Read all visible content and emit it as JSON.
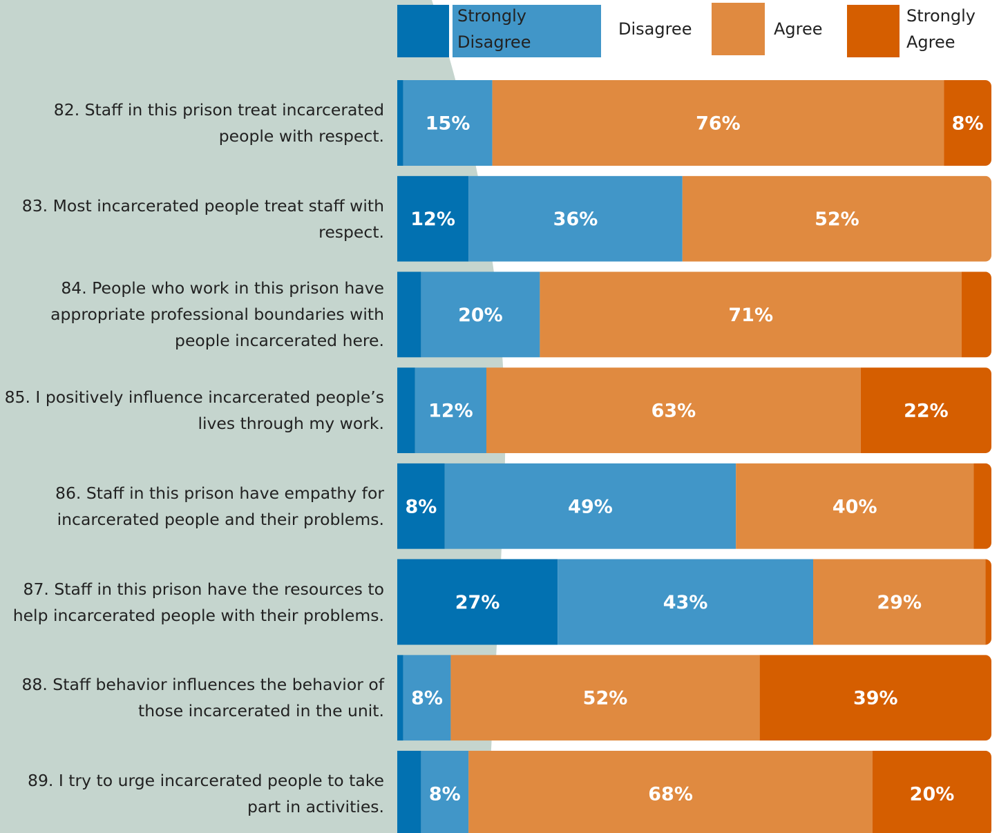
{
  "chart_data": {
    "type": "stacked-bar-horizontal",
    "categories": [
      "82. Staff in this prison treat incarcerated people with respect.",
      "83. Most incarcerated people treat staff with respect.",
      "84. People who work in this prison have appropriate professional boundaries with people incarcerated here.",
      "85. I positively influence incarcerated people’s lives through my work.",
      "86. Staff in this prison have empathy for incarcerated people and their problems.",
      "87. Staff in this prison have the resources to help incarcerated people with their problems.",
      "88. Staff behavior influences the behavior of those incarcerated in the unit.",
      "89. I try to urge incarcerated people to take part in activities."
    ],
    "series": [
      {
        "name": "Strongly Disagree",
        "color": "#0271b1",
        "values": [
          1,
          12,
          4,
          3,
          8,
          27,
          1,
          4
        ],
        "value_labels": [
          null,
          "12%",
          null,
          null,
          "8%",
          "27%",
          null,
          null
        ]
      },
      {
        "name": "Disagree",
        "color": "#4196c8",
        "values": [
          15,
          36,
          20,
          12,
          49,
          43,
          8,
          8
        ],
        "value_labels": [
          "15%",
          "36%",
          "20%",
          "12%",
          "49%",
          "43%",
          "8%",
          "8%"
        ]
      },
      {
        "name": "Agree",
        "color": "#e08a40",
        "values": [
          76,
          52,
          71,
          63,
          40,
          29,
          52,
          68
        ],
        "value_labels": [
          "76%",
          "52%",
          "71%",
          "63%",
          "40%",
          "29%",
          "52%",
          "68%"
        ]
      },
      {
        "name": "Strongly Agree",
        "color": "#d55e00",
        "values": [
          8,
          0,
          5,
          22,
          3,
          1,
          39,
          20
        ],
        "value_labels": [
          "8%",
          null,
          null,
          "22%",
          null,
          null,
          "39%",
          "20%"
        ]
      }
    ]
  }
}
